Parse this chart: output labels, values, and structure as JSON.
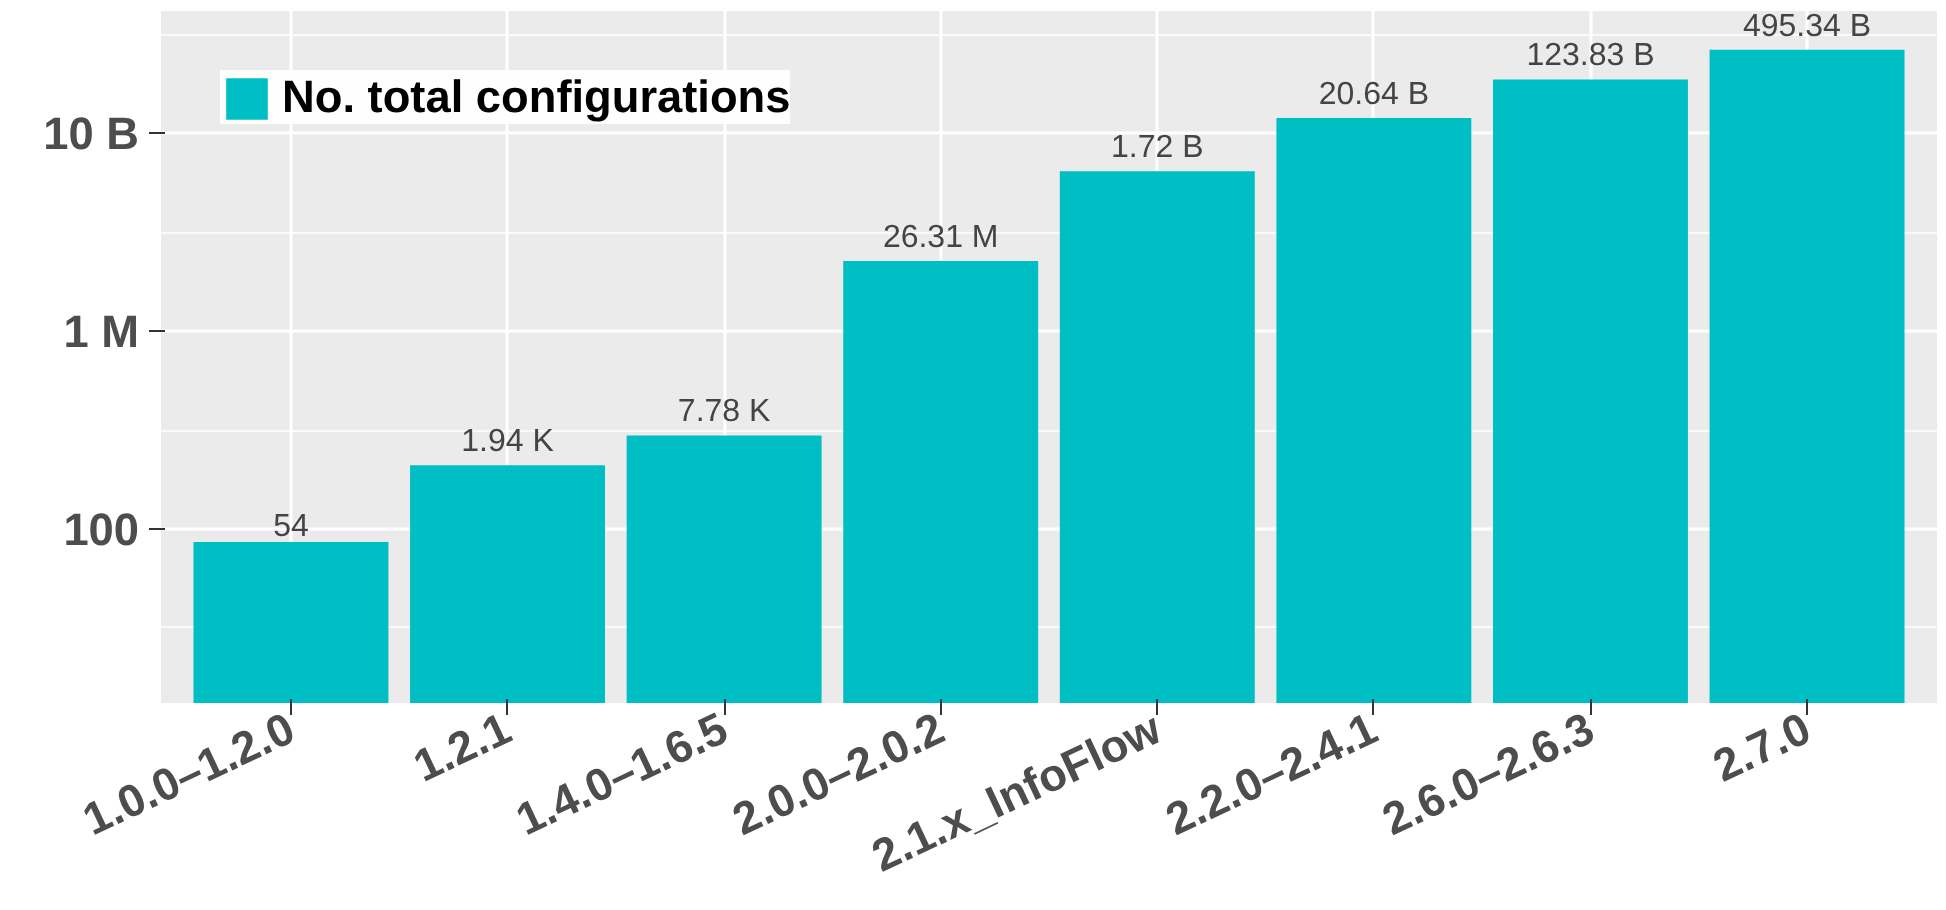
{
  "chart_data": {
    "type": "bar",
    "categories": [
      "1.0.0–1.2.0",
      "1.2.1",
      "1.4.0–1.6.5",
      "2.0.0–2.0.2",
      "2.1.x_InfoFlow",
      "2.2.0–2.4.1",
      "2.6.0–2.6.3",
      "2.7.0"
    ],
    "series": [
      {
        "name": "No. total configurations",
        "color": "#00bfc4",
        "values": [
          54,
          1940,
          7780,
          26310000,
          1720000000,
          20640000000,
          123830000000,
          495340000000
        ]
      }
    ],
    "value_labels": [
      "54",
      "1.94 K",
      "7.78 K",
      "26.31 M",
      "1.72 B",
      "20.64 B",
      "123.83 B",
      "495.34 B"
    ],
    "log": "y",
    "ylim": [
      0.03,
      3000000000000
    ],
    "yticks": [
      {
        "value": 1,
        "label": null
      },
      {
        "value": 100,
        "label": "100"
      },
      {
        "value": 10000,
        "label": null
      },
      {
        "value": 1000000,
        "label": "1 M"
      },
      {
        "value": 100000000,
        "label": null
      },
      {
        "value": 10000000000,
        "label": "10 B"
      },
      {
        "value": 1000000000000,
        "label": null
      }
    ],
    "grid": true,
    "legend": "top left"
  }
}
